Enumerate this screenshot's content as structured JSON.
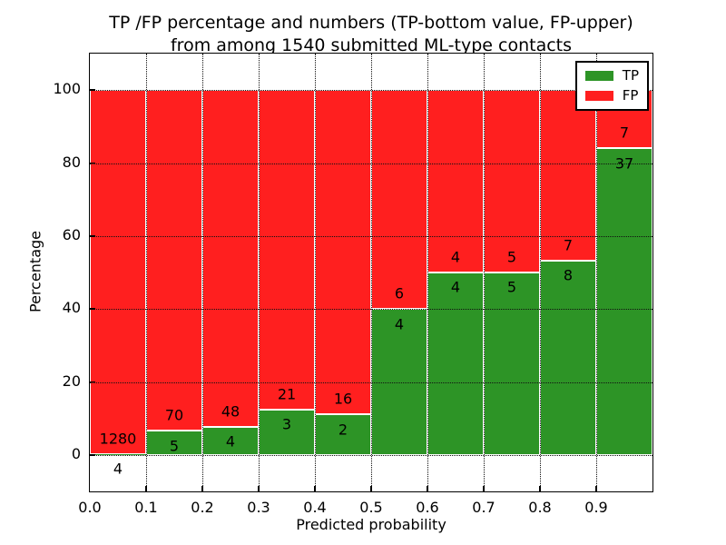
{
  "chart_data": {
    "type": "bar",
    "stacked": true,
    "orientation": "vertical",
    "title_line1": "TP /FP percentage and numbers (TP-bottom value, FP-upper)",
    "title_line2": "from among 1540 submitted ML-type contacts",
    "xlabel": "Predicted probability",
    "ylabel": "Percentage",
    "xlim": [
      0.0,
      1.0
    ],
    "ylim": [
      -10,
      110
    ],
    "bar_width": 0.1,
    "x_tick_labels": [
      "0.0",
      "0.1",
      "0.2",
      "0.3",
      "0.4",
      "0.5",
      "0.6",
      "0.7",
      "0.8",
      "0.9"
    ],
    "y_tick_values": [
      0,
      20,
      40,
      60,
      80,
      100
    ],
    "grid_style": "dotted",
    "categories": [
      "0.0-0.1",
      "0.1-0.2",
      "0.2-0.3",
      "0.3-0.4",
      "0.4-0.5",
      "0.5-0.6",
      "0.6-0.7",
      "0.7-0.8",
      "0.8-0.9",
      "0.9-1.0"
    ],
    "series": [
      {
        "name": "TP",
        "color": "#2d9426",
        "counts": [
          4,
          5,
          4,
          3,
          2,
          4,
          4,
          5,
          8,
          37
        ]
      },
      {
        "name": "FP",
        "color": "#ff1f1f",
        "counts": [
          1280,
          70,
          48,
          21,
          16,
          6,
          4,
          5,
          7,
          7
        ]
      }
    ],
    "tp_percent": [
      0.31,
      6.67,
      7.69,
      12.5,
      11.11,
      40.0,
      50.0,
      50.0,
      53.33,
      84.09
    ],
    "total_contacts": 1540,
    "legend": {
      "position": "upper right",
      "entries": [
        "TP",
        "FP"
      ]
    }
  },
  "colors": {
    "tp_green": "#2d9426",
    "fp_red": "#ff1f1f",
    "grid": "#111111",
    "frame": "#000000",
    "background": "#ffffff",
    "bar_edge": "#ffffff"
  }
}
